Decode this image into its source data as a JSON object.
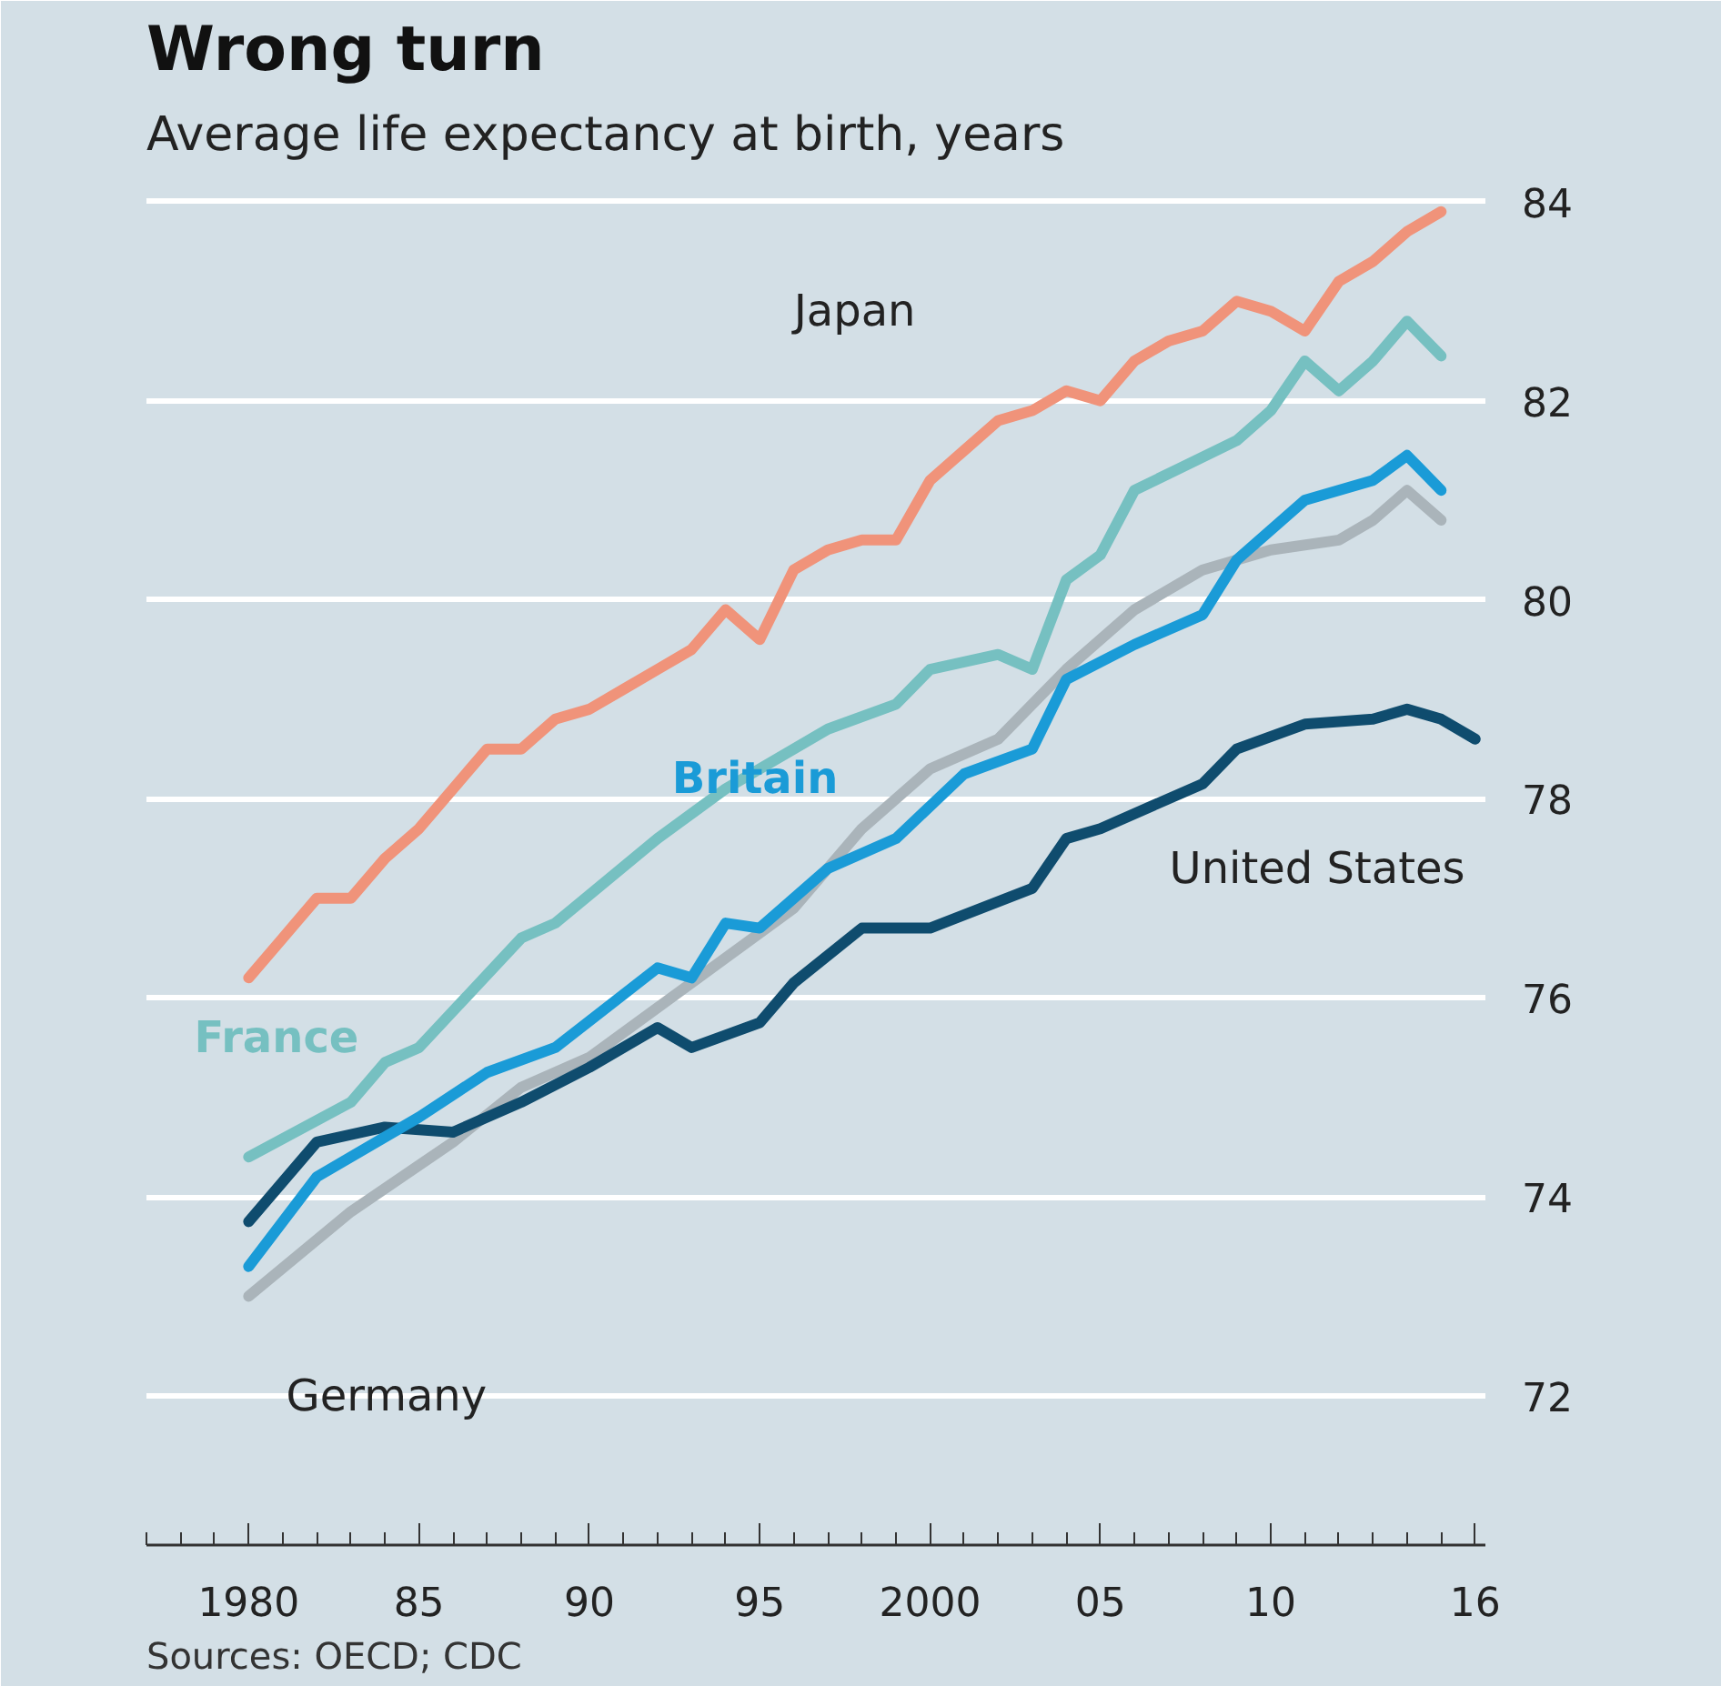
{
  "chart_data": {
    "type": "line",
    "title": "Wrong turn",
    "subtitle": "Average life expectancy at birth, years",
    "annotations": [
      "Sources: OECD; CDC"
    ],
    "xlim": [
      1977,
      2016.3
    ],
    "xticks": [
      {
        "value": 1980,
        "label": "1980"
      },
      {
        "value": 1985,
        "label": "85"
      },
      {
        "value": 1990,
        "label": "90"
      },
      {
        "value": 1995,
        "label": "95"
      },
      {
        "value": 2000,
        "label": "2000"
      },
      {
        "value": 2005,
        "label": "05"
      },
      {
        "value": 2010,
        "label": "10"
      },
      {
        "value": 2016,
        "label": "16"
      }
    ],
    "ylim": [
      70.5,
      84.3
    ],
    "yticks": [
      72,
      74,
      76,
      78,
      80,
      82,
      84
    ],
    "grid": "y",
    "line_style": "solid",
    "marker": "none",
    "series": [
      {
        "name": "Germany",
        "color": "#aab4ba",
        "x": [
          1980,
          1983,
          1986,
          1988,
          1990,
          1992,
          1994,
          1996,
          1998,
          2000,
          2002,
          2004,
          2006,
          2008,
          2010,
          2012,
          2013,
          2014,
          2015
        ],
        "values": [
          73.0,
          73.85,
          74.55,
          75.1,
          75.4,
          75.9,
          76.4,
          76.9,
          77.7,
          78.3,
          78.6,
          79.3,
          79.9,
          80.3,
          80.5,
          80.6,
          80.8,
          81.1,
          80.8
        ]
      },
      {
        "name": "United States",
        "color": "#0f4c6e",
        "x": [
          1980,
          1982,
          1984,
          1986,
          1988,
          1990,
          1992,
          1993,
          1995,
          1996,
          1998,
          2000,
          2003,
          2004,
          2005,
          2008,
          2009,
          2011,
          2013,
          2014,
          2015,
          2016
        ],
        "values": [
          73.75,
          74.55,
          74.7,
          74.65,
          74.95,
          75.3,
          75.7,
          75.5,
          75.75,
          76.15,
          76.7,
          76.7,
          77.1,
          77.6,
          77.7,
          78.15,
          78.5,
          78.75,
          78.8,
          78.9,
          78.8,
          78.6
        ]
      },
      {
        "name": "Britain",
        "color": "#1a9bd7",
        "x": [
          1980,
          1982,
          1985,
          1987,
          1989,
          1992,
          1993,
          1994,
          1995,
          1997,
          1999,
          2001,
          2003,
          2004,
          2006,
          2008,
          2009,
          2011,
          2013,
          2014,
          2015
        ],
        "values": [
          73.3,
          74.2,
          74.8,
          75.25,
          75.5,
          76.3,
          76.2,
          76.75,
          76.7,
          77.3,
          77.6,
          78.25,
          78.5,
          79.2,
          79.55,
          79.85,
          80.4,
          81.0,
          81.2,
          81.45,
          81.1
        ]
      },
      {
        "name": "France",
        "color": "#76c0c1",
        "x": [
          1980,
          1983,
          1984,
          1985,
          1988,
          1989,
          1992,
          1994,
          1997,
          1999,
          2000,
          2002,
          2003,
          2004,
          2005,
          2006,
          2009,
          2010,
          2011,
          2012,
          2013,
          2014,
          2015
        ],
        "values": [
          74.4,
          74.95,
          75.35,
          75.5,
          76.6,
          76.75,
          77.6,
          78.1,
          78.7,
          78.95,
          79.3,
          79.45,
          79.3,
          80.2,
          80.45,
          81.1,
          81.6,
          81.9,
          82.4,
          82.1,
          82.4,
          82.8,
          82.45
        ]
      },
      {
        "name": "Japan",
        "color": "#f0937a",
        "x": [
          1980,
          1981,
          1982,
          1983,
          1984,
          1985,
          1986,
          1987,
          1988,
          1989,
          1990,
          1991,
          1992,
          1993,
          1994,
          1995,
          1996,
          1997,
          1998,
          1999,
          2000,
          2001,
          2002,
          2003,
          2004,
          2005,
          2006,
          2007,
          2008,
          2009,
          2010,
          2011,
          2012,
          2013,
          2014,
          2015
        ],
        "values": [
          76.2,
          76.6,
          77.0,
          77.0,
          77.4,
          77.7,
          78.1,
          78.5,
          78.5,
          78.8,
          78.9,
          79.1,
          79.3,
          79.5,
          79.9,
          79.6,
          80.3,
          80.5,
          80.6,
          80.6,
          81.2,
          81.5,
          81.8,
          81.9,
          82.1,
          82.0,
          82.4,
          82.6,
          82.7,
          83.0,
          82.9,
          82.7,
          83.2,
          83.4,
          83.7,
          83.9
        ]
      }
    ]
  }
}
